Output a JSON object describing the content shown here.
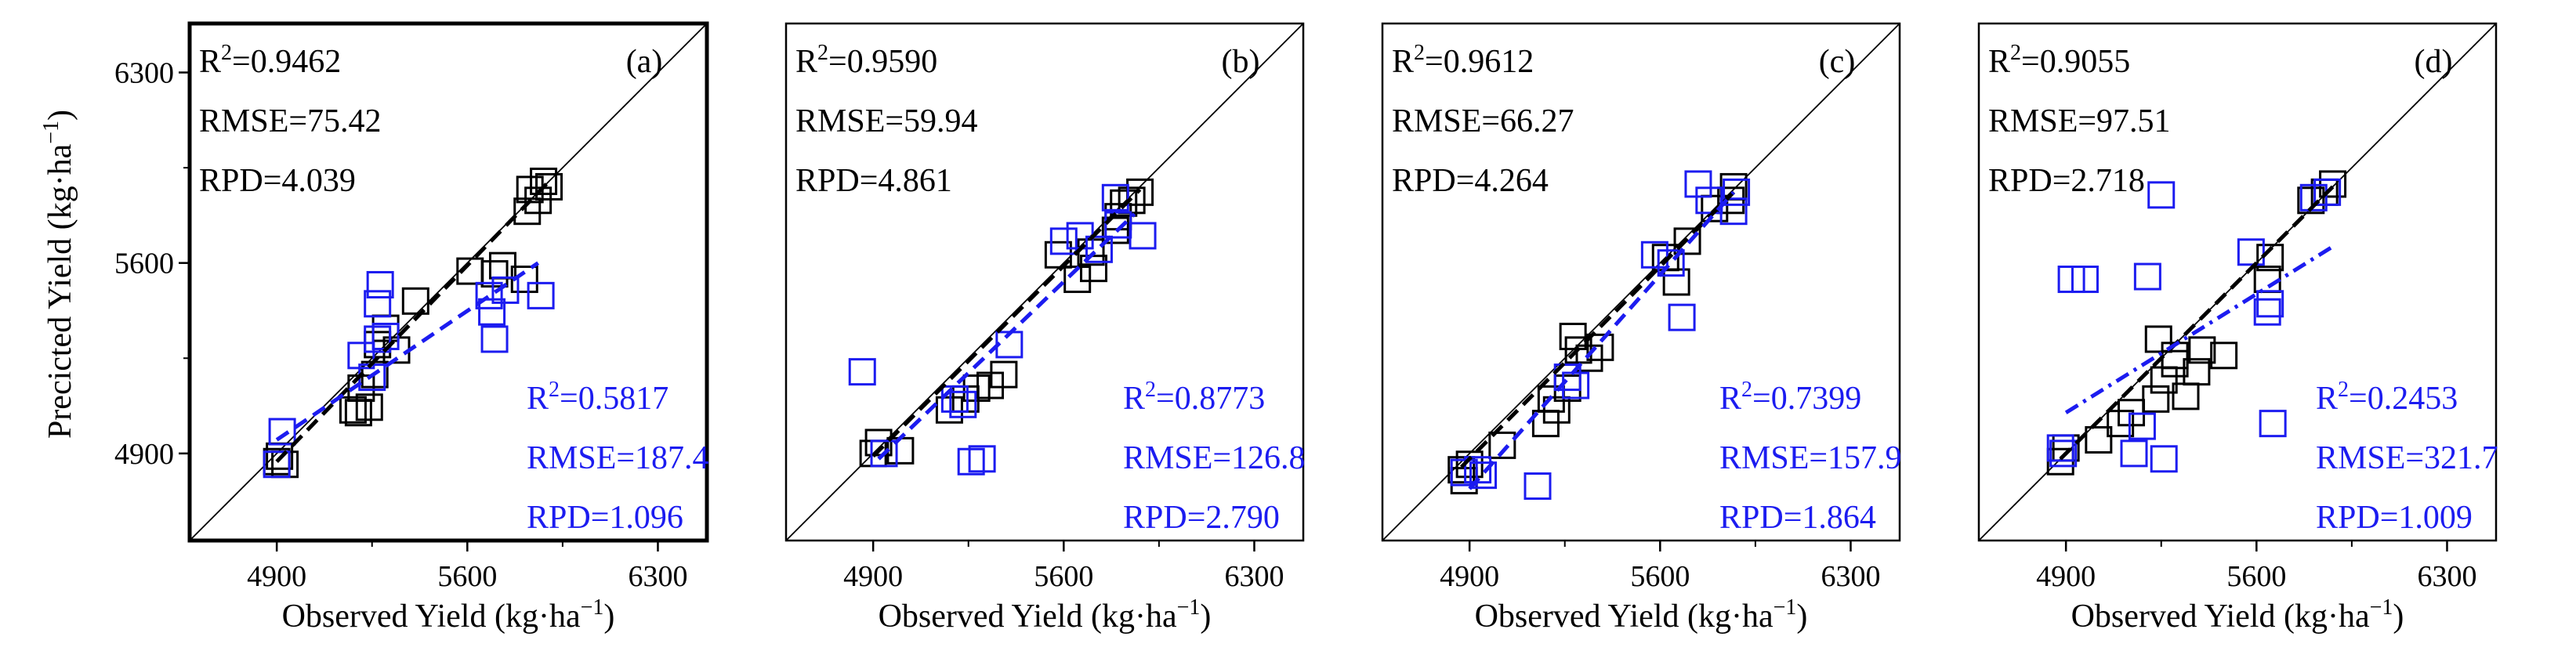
{
  "figure": {
    "ylabel": "Precicted Yield (kg·ha",
    "ylabel_sup": "−1",
    "ylabel_close": ")",
    "xlabel": "Observed Yield (kg·ha",
    "xlabel_sup": "−1",
    "xlabel_close": ")",
    "colors": {
      "train": "#000000",
      "test": "#1c1cf0",
      "frame": "#000000"
    }
  },
  "chart_data": [
    {
      "type": "scatter",
      "panel": "(a)",
      "xlim": [
        4580,
        6480
      ],
      "ylim": [
        4580,
        6480
      ],
      "xticks": [
        "4900",
        "5600",
        "6300"
      ],
      "yticks": [
        "4900",
        "5600",
        "6300"
      ],
      "xlabel": "Observed Yield (kg·ha−1)",
      "ylabel": "Precicted Yield (kg·ha−1)",
      "train_stats": {
        "r2_label": "R",
        "r2_sup": "2",
        "r2": "=0.9462",
        "rmse": "RMSE=75.42",
        "rpd": "RPD=4.039"
      },
      "test_stats": {
        "r2_label": "R",
        "r2_sup": "2",
        "r2": "=0.5817",
        "rmse": "RMSE=187.4",
        "rpd": "RPD=1.096"
      },
      "train_points": [
        [
          4900,
          4870
        ],
        [
          4930,
          4860
        ],
        [
          4910,
          4890
        ],
        [
          5180,
          5060
        ],
        [
          5200,
          5050
        ],
        [
          5240,
          5070
        ],
        [
          5210,
          5140
        ],
        [
          5260,
          5190
        ],
        [
          5270,
          5300
        ],
        [
          5340,
          5280
        ],
        [
          5300,
          5360
        ],
        [
          5410,
          5460
        ],
        [
          5610,
          5570
        ],
        [
          5700,
          5560
        ],
        [
          5730,
          5590
        ],
        [
          5810,
          5540
        ],
        [
          5820,
          5790
        ],
        [
          5860,
          5830
        ],
        [
          5830,
          5870
        ],
        [
          5880,
          5900
        ],
        [
          5900,
          5880
        ]
      ],
      "test_points": [
        [
          4900,
          4860
        ],
        [
          4920,
          4980
        ],
        [
          5210,
          5260
        ],
        [
          5250,
          5180
        ],
        [
          5270,
          5320
        ],
        [
          5300,
          5330
        ],
        [
          5270,
          5450
        ],
        [
          5280,
          5520
        ],
        [
          5680,
          5480
        ],
        [
          5690,
          5420
        ],
        [
          5700,
          5320
        ],
        [
          5740,
          5500
        ],
        [
          5870,
          5480
        ]
      ],
      "train_fit": [
        [
          4900,
          4870
        ],
        [
          5900,
          5900
        ]
      ],
      "test_fit": [
        [
          4900,
          4950
        ],
        [
          5860,
          5600
        ]
      ]
    },
    {
      "type": "scatter",
      "panel": "(b)",
      "xlim": [
        4580,
        6480
      ],
      "ylim": [
        4580,
        6480
      ],
      "xticks": [
        "4900",
        "5600",
        "6300"
      ],
      "yticks": [],
      "xlabel": "Observed Yield (kg·ha−1)",
      "ylabel": "",
      "train_stats": {
        "r2_label": "R",
        "r2_sup": "2",
        "r2": "=0.9590",
        "rmse": "RMSE=59.94",
        "rpd": "RPD=4.861"
      },
      "test_stats": {
        "r2_label": "R",
        "r2_sup": "2",
        "r2": "=0.8773",
        "rmse": "RMSE=126.8",
        "rpd": "RPD=2.790"
      },
      "train_points": [
        [
          4900,
          4900
        ],
        [
          4920,
          4940
        ],
        [
          5000,
          4910
        ],
        [
          5180,
          5060
        ],
        [
          5240,
          5100
        ],
        [
          5280,
          5140
        ],
        [
          5330,
          5150
        ],
        [
          5380,
          5190
        ],
        [
          5580,
          5630
        ],
        [
          5650,
          5540
        ],
        [
          5700,
          5640
        ],
        [
          5710,
          5580
        ],
        [
          5800,
          5770
        ],
        [
          5820,
          5820
        ],
        [
          5850,
          5830
        ],
        [
          5880,
          5860
        ],
        [
          5790,
          5720
        ]
      ],
      "test_points": [
        [
          4860,
          5200
        ],
        [
          4940,
          4900
        ],
        [
          5200,
          5100
        ],
        [
          5230,
          5080
        ],
        [
          5260,
          4870
        ],
        [
          5300,
          4880
        ],
        [
          5400,
          5300
        ],
        [
          5600,
          5680
        ],
        [
          5660,
          5700
        ],
        [
          5730,
          5650
        ],
        [
          5790,
          5840
        ],
        [
          5800,
          5740
        ],
        [
          5890,
          5700
        ]
      ],
      "train_fit": [
        [
          4900,
          4890
        ],
        [
          5880,
          5870
        ]
      ],
      "test_fit": [
        [
          4920,
          4880
        ],
        [
          5860,
          5780
        ]
      ]
    },
    {
      "type": "scatter",
      "panel": "(c)",
      "xlim": [
        4580,
        6480
      ],
      "ylim": [
        4580,
        6480
      ],
      "xticks": [
        "4900",
        "5600",
        "6300"
      ],
      "yticks": [],
      "xlabel": "Observed Yield (kg·ha−1)",
      "ylabel": "",
      "train_stats": {
        "r2_label": "R",
        "r2_sup": "2",
        "r2": "=0.9612",
        "rmse": "RMSE=66.27",
        "rpd": "RPD=4.264"
      },
      "test_stats": {
        "r2_label": "R",
        "r2_sup": "2",
        "r2": "=0.7399",
        "rmse": "RMSE=157.9",
        "rpd": "RPD=1.864"
      },
      "train_points": [
        [
          4870,
          4840
        ],
        [
          4880,
          4800
        ],
        [
          4900,
          4860
        ],
        [
          5020,
          4930
        ],
        [
          5180,
          5010
        ],
        [
          5200,
          5100
        ],
        [
          5220,
          5060
        ],
        [
          5260,
          5140
        ],
        [
          5280,
          5330
        ],
        [
          5300,
          5280
        ],
        [
          5340,
          5250
        ],
        [
          5380,
          5290
        ],
        [
          5620,
          5620
        ],
        [
          5660,
          5530
        ],
        [
          5700,
          5680
        ],
        [
          5800,
          5800
        ],
        [
          5860,
          5830
        ],
        [
          5870,
          5880
        ]
      ],
      "test_points": [
        [
          4880,
          4830
        ],
        [
          4930,
          4840
        ],
        [
          4950,
          4820
        ],
        [
          5150,
          4780
        ],
        [
          5260,
          5180
        ],
        [
          5290,
          5150
        ],
        [
          5580,
          5630
        ],
        [
          5640,
          5600
        ],
        [
          5680,
          5400
        ],
        [
          5740,
          5890
        ],
        [
          5780,
          5830
        ],
        [
          5870,
          5790
        ],
        [
          5880,
          5860
        ]
      ],
      "train_fit": [
        [
          4870,
          4850
        ],
        [
          5880,
          5870
        ]
      ],
      "test_fit": [
        [
          4900,
          4770
        ],
        [
          5870,
          5860
        ]
      ]
    },
    {
      "type": "scatter",
      "panel": "(d)",
      "xlim": [
        4580,
        6480
      ],
      "ylim": [
        4580,
        6480
      ],
      "xticks": [
        "4900",
        "5600",
        "6300"
      ],
      "yticks": [],
      "xlabel": "Observed Yield (kg·ha−1)",
      "ylabel": "",
      "train_stats": {
        "r2_label": "R",
        "r2_sup": "2",
        "r2": "=0.9055",
        "rmse": "RMSE=97.51",
        "rpd": "RPD=2.718"
      },
      "test_stats": {
        "r2_label": "R",
        "r2_sup": "2",
        "r2": "=0.2453",
        "rmse": "RMSE=321.7",
        "rpd": "RPD=1.009"
      },
      "train_points": [
        [
          4880,
          4870
        ],
        [
          4900,
          4920
        ],
        [
          5020,
          4950
        ],
        [
          5100,
          5010
        ],
        [
          5140,
          5050
        ],
        [
          5230,
          5100
        ],
        [
          5260,
          5170
        ],
        [
          5300,
          5230
        ],
        [
          5340,
          5110
        ],
        [
          5380,
          5200
        ],
        [
          5400,
          5280
        ],
        [
          5240,
          5320
        ],
        [
          5300,
          5260
        ],
        [
          5480,
          5260
        ],
        [
          5640,
          5540
        ],
        [
          5650,
          5620
        ],
        [
          5800,
          5830
        ],
        [
          5850,
          5860
        ],
        [
          5880,
          5890
        ]
      ],
      "test_points": [
        [
          4880,
          4920
        ],
        [
          4890,
          4900
        ],
        [
          4920,
          5540
        ],
        [
          4970,
          5540
        ],
        [
          5150,
          4900
        ],
        [
          5180,
          5000
        ],
        [
          5200,
          5550
        ],
        [
          5250,
          5850
        ],
        [
          5260,
          4880
        ],
        [
          5580,
          5640
        ],
        [
          5640,
          5420
        ],
        [
          5650,
          5450
        ],
        [
          5660,
          5010
        ],
        [
          5810,
          5840
        ],
        [
          5860,
          5860
        ]
      ],
      "train_fit": [
        [
          4880,
          4880
        ],
        [
          5880,
          5880
        ]
      ],
      "test_fit": [
        [
          4900,
          5050
        ],
        [
          5880,
          5660
        ]
      ]
    }
  ]
}
